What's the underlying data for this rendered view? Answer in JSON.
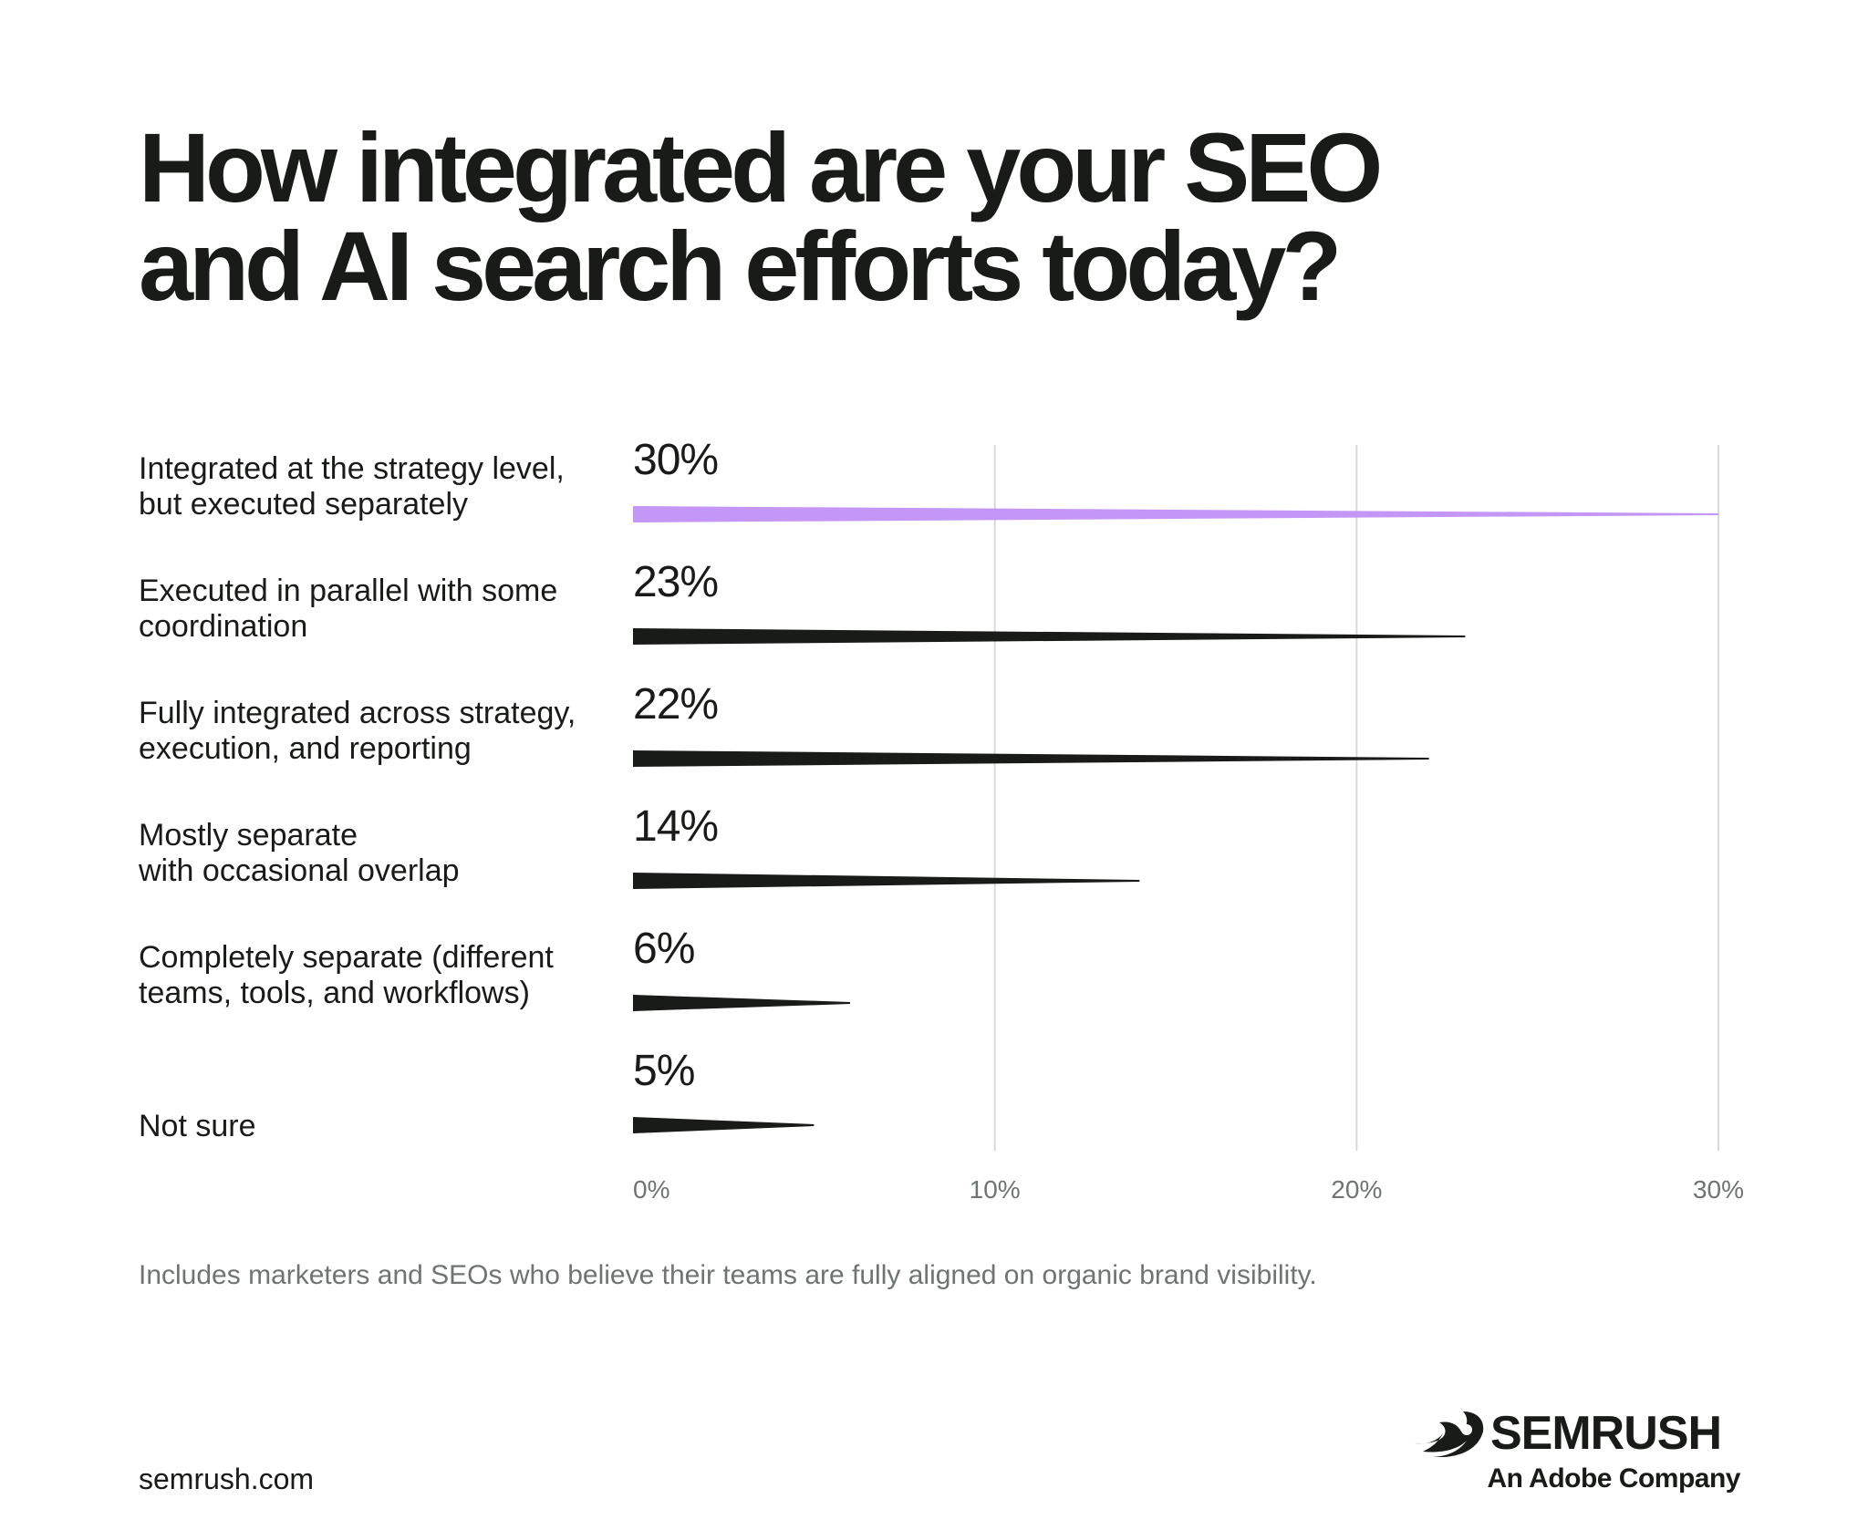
{
  "title": "How integrated are your SEO\nand AI search efforts today?",
  "footnote": "Includes marketers and SEOs who believe their teams are fully aligned on organic brand visibility.",
  "site": "semrush.com",
  "brand": {
    "name": "SEMRUSH",
    "subtitle": "An Adobe Company",
    "icon": "semrush-flame-icon"
  },
  "colors": {
    "highlight": "#c496f5",
    "bar": "#181b17",
    "grid": "#d9d9d9",
    "muted_text": "#6f7373"
  },
  "chart_data": {
    "type": "bar",
    "orientation": "horizontal",
    "categories": [
      [
        "Integrated at the strategy level,",
        "but executed separately"
      ],
      [
        "Executed in parallel with some",
        "coordination"
      ],
      [
        "Fully integrated across strategy,",
        "execution, and reporting"
      ],
      [
        "Mostly separate",
        "with occasional overlap"
      ],
      [
        "Completely separate (different",
        "teams, tools, and workflows)"
      ],
      [
        "Not sure"
      ]
    ],
    "values": [
      30,
      23,
      22,
      14,
      6,
      5
    ],
    "value_labels": [
      "30%",
      "23%",
      "22%",
      "14%",
      "6%",
      "5%"
    ],
    "highlight_index": 0,
    "xlim": [
      0,
      30
    ],
    "xticks": [
      0,
      10,
      20,
      30
    ],
    "xtick_labels": [
      "0%",
      "10%",
      "20%",
      "30%"
    ],
    "grid": true
  }
}
